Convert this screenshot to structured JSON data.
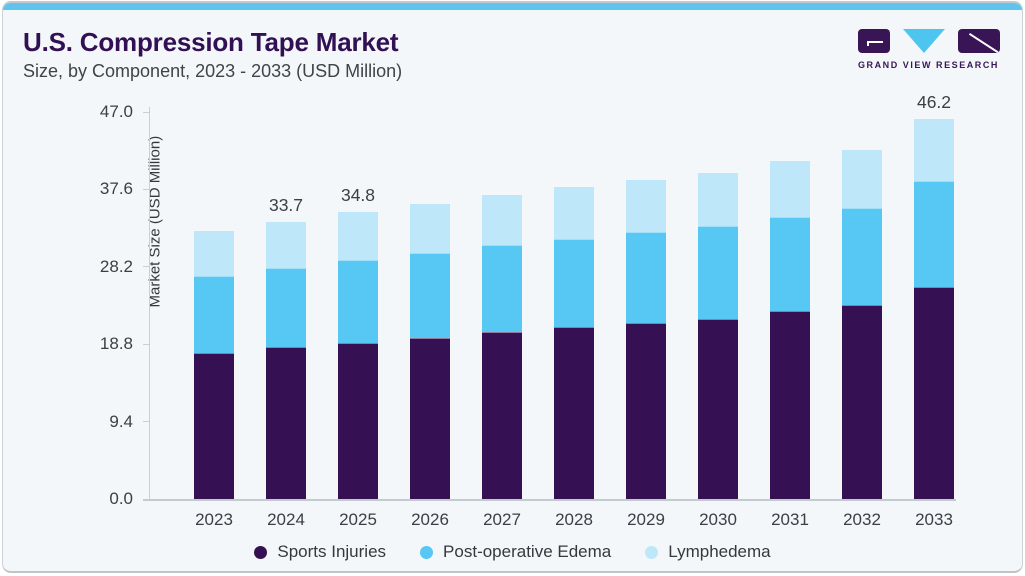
{
  "header": {
    "title": "U.S. Compression Tape Market",
    "subtitle": "Size, by Component, 2023 - 2033 (USD Million)"
  },
  "logo": {
    "wordmark": "GRAND VIEW RESEARCH"
  },
  "colors": {
    "accent_bar": "#5fc4ec",
    "title_text": "#321053",
    "sports_injuries": "#351153",
    "post_operative_edema": "#57c7f3",
    "lymphedema": "#bee8f9",
    "axis": "#c9cfd6",
    "background": "#f3f7fa",
    "logo_purple": "#3a1556",
    "logo_cyan": "#4ec5ef"
  },
  "chart_data": {
    "type": "bar",
    "stacked": true,
    "title": "U.S. Compression Tape Market Size, by Component, 2023 - 2033 (USD Million)",
    "xlabel": "",
    "ylabel": "Market Size (USD Million)",
    "ylim": [
      0,
      47
    ],
    "yticks": [
      0.0,
      9.4,
      18.8,
      28.2,
      37.6,
      47.0
    ],
    "ytick_labels": [
      "0.0",
      "9.4",
      "18.8",
      "28.2",
      "37.6",
      "47.0"
    ],
    "grid": false,
    "legend_position": "bottom",
    "categories": [
      "2023",
      "2024",
      "2025",
      "2026",
      "2027",
      "2028",
      "2029",
      "2030",
      "2031",
      "2032",
      "2033"
    ],
    "series": [
      {
        "name": "Sports Injuries",
        "color": "#351153",
        "values": [
          17.7,
          18.4,
          19.0,
          19.6,
          20.3,
          20.9,
          21.4,
          21.9,
          22.8,
          23.5,
          25.8
        ]
      },
      {
        "name": "Post-operative Edema",
        "color": "#57c7f3",
        "values": [
          9.4,
          9.7,
          10.0,
          10.3,
          10.5,
          10.7,
          11.0,
          11.2,
          11.5,
          11.9,
          12.8
        ]
      },
      {
        "name": "Lymphedema",
        "color": "#bee8f9",
        "values": [
          5.4,
          5.6,
          5.8,
          5.9,
          6.1,
          6.3,
          6.4,
          6.5,
          6.7,
          7.0,
          7.6
        ]
      }
    ],
    "totals": [
      32.5,
      33.7,
      34.8,
      35.8,
      36.9,
      37.9,
      38.8,
      39.6,
      41.0,
      42.4,
      46.2
    ],
    "total_labels": [
      null,
      "33.7",
      "34.8",
      null,
      null,
      null,
      null,
      null,
      null,
      null,
      "46.2"
    ]
  }
}
